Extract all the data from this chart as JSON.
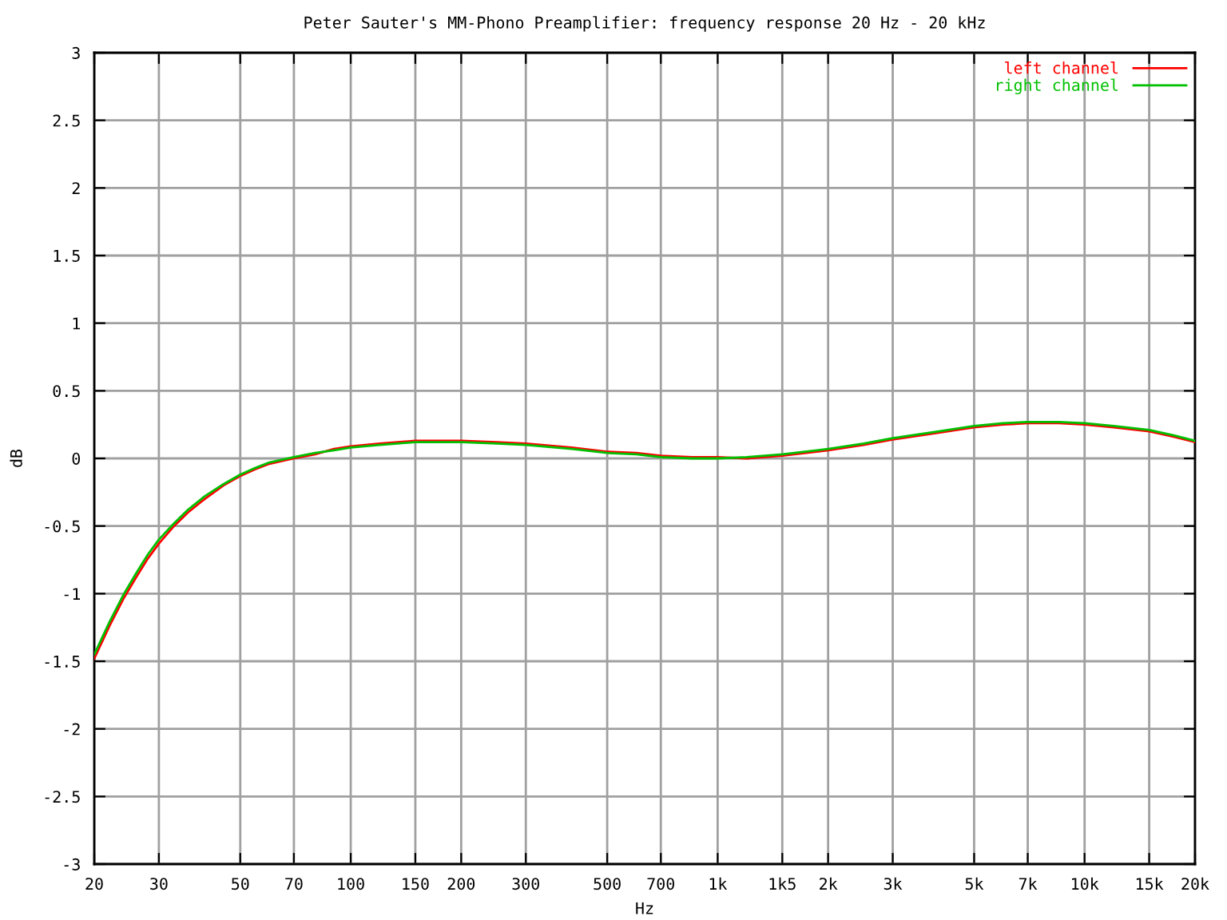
{
  "chart_data": {
    "type": "line",
    "title": "Peter Sauter's MM-Phono Preamplifier: frequency response 20 Hz - 20 kHz",
    "xlabel": "Hz",
    "ylabel": "dB",
    "log": "x",
    "grid": true,
    "legend": "top right",
    "line_style": "solid",
    "xlim": [
      20,
      20000
    ],
    "xticks": [
      20,
      30,
      50,
      70,
      100,
      150,
      200,
      300,
      500,
      700,
      {
        "value": 1000,
        "label": "1k"
      },
      {
        "value": 1500,
        "label": "1k5"
      },
      {
        "value": 2000,
        "label": "2k"
      },
      {
        "value": 3000,
        "label": "3k"
      },
      {
        "value": 5000,
        "label": "5k"
      },
      {
        "value": 7000,
        "label": "7k"
      },
      {
        "value": 10000,
        "label": "10k"
      },
      {
        "value": 15000,
        "label": "15k"
      },
      {
        "value": 20000,
        "label": "20k"
      }
    ],
    "ylim": [
      -3,
      3
    ],
    "yticks": [
      -3,
      -2.5,
      -2,
      -1.5,
      -1,
      -0.5,
      0,
      0.5,
      1,
      1.5,
      2,
      2.5,
      3
    ],
    "x": [
      20,
      22,
      24,
      26,
      28,
      30,
      33,
      36,
      40,
      45,
      50,
      55,
      60,
      70,
      80,
      90,
      100,
      120,
      150,
      200,
      250,
      300,
      400,
      500,
      600,
      700,
      850,
      1000,
      1200,
      1500,
      2000,
      2500,
      3000,
      4000,
      5000,
      6000,
      7000,
      8500,
      10000,
      12000,
      15000,
      17500,
      20000
    ],
    "series": [
      {
        "name": "left channel",
        "color": "#ff0000",
        "values": [
          -1.48,
          -1.24,
          -1.04,
          -0.88,
          -0.74,
          -0.63,
          -0.5,
          -0.4,
          -0.3,
          -0.2,
          -0.13,
          -0.08,
          -0.04,
          0.0,
          0.03,
          0.07,
          0.09,
          0.11,
          0.13,
          0.13,
          0.12,
          0.11,
          0.08,
          0.05,
          0.04,
          0.02,
          0.01,
          0.01,
          0.0,
          0.02,
          0.06,
          0.1,
          0.14,
          0.19,
          0.23,
          0.25,
          0.26,
          0.26,
          0.25,
          0.23,
          0.2,
          0.16,
          0.12
        ]
      },
      {
        "name": "right channel",
        "color": "#00c000",
        "values": [
          -1.45,
          -1.21,
          -1.01,
          -0.85,
          -0.71,
          -0.6,
          -0.48,
          -0.38,
          -0.28,
          -0.19,
          -0.12,
          -0.07,
          -0.03,
          0.01,
          0.04,
          0.06,
          0.08,
          0.1,
          0.12,
          0.12,
          0.11,
          0.1,
          0.07,
          0.04,
          0.03,
          0.01,
          0.0,
          0.0,
          0.01,
          0.03,
          0.07,
          0.11,
          0.15,
          0.2,
          0.24,
          0.26,
          0.27,
          0.27,
          0.26,
          0.24,
          0.21,
          0.17,
          0.13
        ]
      }
    ]
  }
}
